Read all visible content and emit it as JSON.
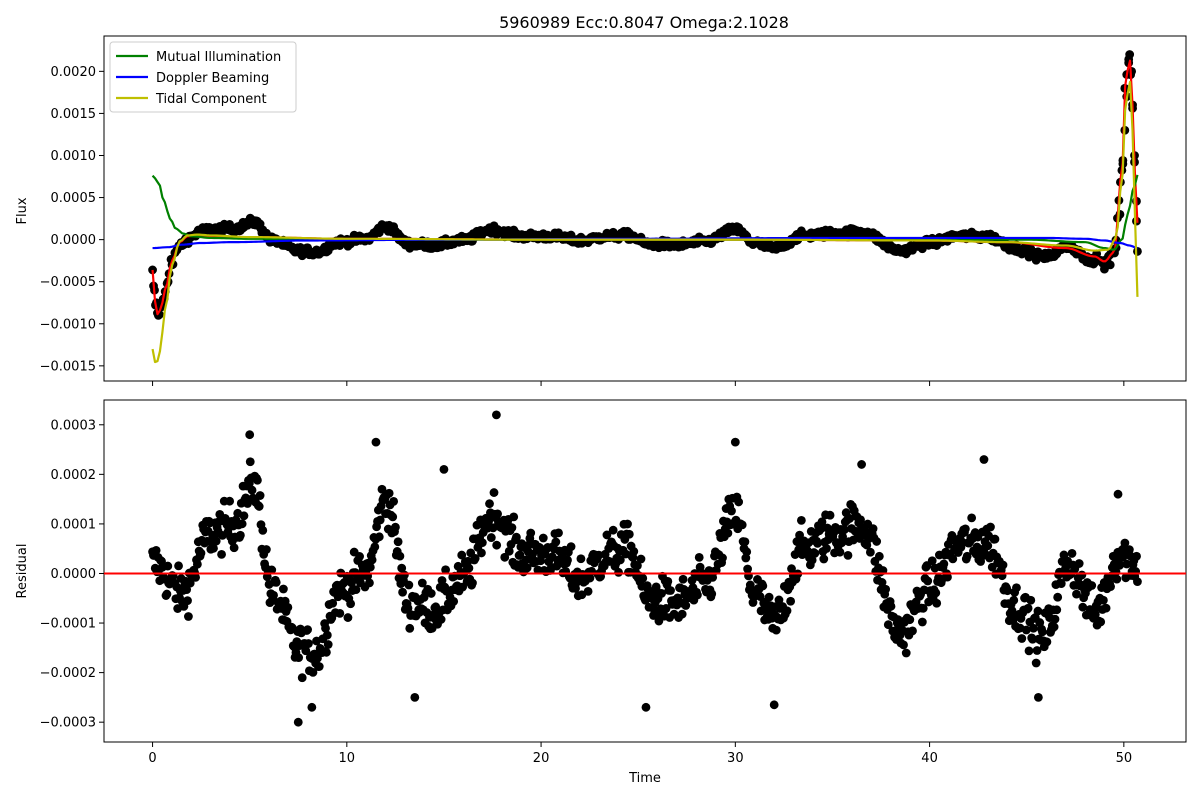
{
  "chart_data": [
    {
      "type": "scatter",
      "title": "5960989    Ecc:0.8047  Omega:2.1028",
      "xlabel": "",
      "ylabel": "Flux",
      "xlim": [
        -2.5,
        53.2
      ],
      "ylim": [
        -0.00168,
        0.00242
      ],
      "x_ticks": [
        0,
        10,
        20,
        30,
        40,
        50
      ],
      "y_ticks": [
        -0.0015,
        -0.001,
        -0.0005,
        0.0,
        0.0005,
        0.001,
        0.0015,
        0.002
      ],
      "y_tick_labels": [
        "−0.0015",
        "−0.0010",
        "−0.0005",
        "0.0000",
        "0.0005",
        "0.0010",
        "0.0015",
        "0.0020"
      ],
      "x_tick_labels_visible": false,
      "legend_position": "upper-left",
      "series": [
        {
          "name": "Mutual Illumination",
          "kind": "line",
          "color": "#008000",
          "x": [
            0.0,
            0.3,
            0.6,
            0.9,
            1.2,
            1.6,
            2.0,
            3.0,
            5.0,
            10,
            20,
            30,
            40,
            45,
            48,
            49.0,
            49.5,
            49.9,
            50.2,
            50.5,
            50.7
          ],
          "y": [
            0.00076,
            0.00068,
            0.00045,
            0.00025,
            0.00013,
            7e-05,
            4e-05,
            2e-05,
            1e-05,
            0.0,
            0.0,
            0.0,
            0.0,
            0.0,
            -3e-05,
            -0.0001,
            -0.00012,
            0.0,
            0.0003,
            0.0006,
            0.00077
          ]
        },
        {
          "name": "Doppler Beaming",
          "kind": "line",
          "color": "#0000ff",
          "x": [
            0.0,
            0.8,
            1.5,
            2.5,
            4,
            8,
            15,
            25,
            35,
            42,
            46,
            48,
            49,
            49.8,
            50.3,
            50.7
          ],
          "y": [
            -0.0001,
            -9e-05,
            -6e-05,
            -4e-05,
            -3e-05,
            -1e-05,
            0.0,
            1e-05,
            2e-05,
            2e-05,
            2e-05,
            1e-05,
            -1e-05,
            -4e-05,
            -7e-05,
            -0.0001
          ]
        },
        {
          "name": "Tidal Component",
          "kind": "line",
          "color": "#bfbf00",
          "x": [
            0.0,
            0.1,
            0.2,
            0.35,
            0.5,
            0.7,
            1.0,
            1.4,
            1.8,
            2.3,
            3.0,
            5,
            10,
            20,
            30,
            40,
            44,
            47,
            48.5,
            49.2,
            49.6,
            49.9,
            50.1,
            50.3,
            50.45,
            50.6,
            50.7
          ],
          "y": [
            -0.0013,
            -0.00145,
            -0.00148,
            -0.00135,
            -0.0011,
            -0.00075,
            -0.0003,
            -2e-05,
            5e-05,
            6e-05,
            5e-05,
            3e-05,
            1e-05,
            0.0,
            0.0,
            -1e-05,
            -3e-05,
            -7e-05,
            -0.00013,
            -0.00012,
            2e-05,
            0.0007,
            0.0016,
            0.0019,
            0.0013,
            0.0002,
            -0.00068
          ]
        },
        {
          "name": "",
          "kind": "line",
          "color": "#ff0000",
          "x": [
            0.0,
            0.1,
            0.2,
            0.35,
            0.5,
            0.7,
            1.0,
            1.4,
            1.8,
            2.3,
            3.0,
            5,
            10,
            20,
            30,
            40,
            44,
            47,
            48.5,
            49.0,
            49.5,
            49.9,
            50.1,
            50.3,
            50.45,
            50.6,
            50.7
          ],
          "y": [
            -0.00036,
            -0.0007,
            -0.0009,
            -0.00085,
            -0.00075,
            -0.00055,
            -0.00025,
            -3e-05,
            4e-05,
            5e-05,
            4e-05,
            3e-05,
            1e-05,
            0.0,
            0.0,
            -1e-05,
            -3e-05,
            -0.0001,
            -0.0002,
            -0.00026,
            -0.00015,
            0.0008,
            0.0019,
            0.00215,
            0.0016,
            0.0007,
            0.0002
          ]
        }
      ],
      "flux_features": [
        {
          "x": 0.0,
          "y": -0.00036
        },
        {
          "x": 0.1,
          "y": -0.0006
        },
        {
          "x": 0.2,
          "y": -0.00075
        },
        {
          "x": 0.3,
          "y": -0.0009
        },
        {
          "x": 0.45,
          "y": -0.0008
        },
        {
          "x": 0.6,
          "y": -0.0007
        },
        {
          "x": 0.8,
          "y": -0.0005
        },
        {
          "x": 1.0,
          "y": -0.0003
        },
        {
          "x": 1.3,
          "y": -0.0001
        },
        {
          "x": 49.0,
          "y": -0.00035
        },
        {
          "x": 49.3,
          "y": -0.0003
        },
        {
          "x": 49.6,
          "y": -0.0001
        },
        {
          "x": 49.8,
          "y": 0.0003
        },
        {
          "x": 49.95,
          "y": 0.0009
        },
        {
          "x": 50.05,
          "y": 0.0013
        },
        {
          "x": 50.15,
          "y": 0.0017
        },
        {
          "x": 50.25,
          "y": 0.0021
        },
        {
          "x": 50.3,
          "y": 0.0022
        },
        {
          "x": 50.4,
          "y": 0.002
        },
        {
          "x": 50.45,
          "y": 0.0016
        },
        {
          "x": 50.55,
          "y": 0.001
        },
        {
          "x": 50.65,
          "y": 0.00022
        },
        {
          "x": 50.7,
          "y": -0.00014
        }
      ]
    },
    {
      "type": "scatter",
      "title": "",
      "xlabel": "Time",
      "ylabel": "Residual",
      "xlim": [
        -2.5,
        53.2
      ],
      "ylim": [
        -0.00034,
        0.00035
      ],
      "x_ticks": [
        0,
        10,
        20,
        30,
        40,
        50
      ],
      "x_tick_labels": [
        "0",
        "10",
        "20",
        "30",
        "40",
        "50"
      ],
      "y_ticks": [
        -0.0003,
        -0.0002,
        -0.0001,
        0.0,
        0.0001,
        0.0002,
        0.0003
      ],
      "y_tick_labels": [
        "−0.0003",
        "−0.0002",
        "−0.0001",
        "0.0000",
        "0.0001",
        "0.0002",
        "0.0003"
      ],
      "reference_line": {
        "y": 0.0,
        "color": "#ff0000"
      },
      "residual_trend": {
        "x": [
          0,
          1.5,
          3,
          4.2,
          5.2,
          6.2,
          7.5,
          8.5,
          9.5,
          11,
          12,
          13.2,
          14.5,
          16,
          17.5,
          19,
          20.5,
          22,
          23.5,
          24.5,
          25.5,
          27,
          28.5,
          30,
          31,
          32,
          33.5,
          35,
          36.5,
          38.5,
          40,
          41.5,
          43,
          44.5,
          45.8,
          47.2,
          48.5,
          49.8,
          50.7
        ],
        "y": [
          2e-05,
          -4e-05,
          8e-05,
          0.0001,
          0.00018,
          -4e-05,
          -0.00015,
          -0.00016,
          -4e-05,
          0.0,
          0.00015,
          -6e-05,
          -7e-05,
          -1e-05,
          0.00012,
          4e-05,
          4e-05,
          -1e-05,
          4e-05,
          5e-05,
          -5e-05,
          -6e-05,
          -2e-05,
          0.00012,
          -4e-05,
          -0.0001,
          5e-05,
          8e-05,
          0.0001,
          -0.00012,
          -3e-05,
          6e-05,
          6e-05,
          -7e-05,
          -0.00013,
          2e-05,
          -8e-05,
          4e-05,
          2e-05
        ]
      },
      "residual_extremes": [
        {
          "x": 5.0,
          "y": 0.00028
        },
        {
          "x": 7.5,
          "y": -0.0003
        },
        {
          "x": 8.2,
          "y": -0.00027
        },
        {
          "x": 11.5,
          "y": 0.000265
        },
        {
          "x": 15.0,
          "y": 0.00021
        },
        {
          "x": 17.7,
          "y": 0.00032
        },
        {
          "x": 25.4,
          "y": -0.00027
        },
        {
          "x": 30.0,
          "y": 0.000265
        },
        {
          "x": 32.0,
          "y": -0.000265
        },
        {
          "x": 36.5,
          "y": 0.00022
        },
        {
          "x": 42.8,
          "y": 0.00023
        },
        {
          "x": 45.6,
          "y": -0.00025
        },
        {
          "x": 13.5,
          "y": -0.00025
        },
        {
          "x": 49.7,
          "y": 0.00016
        }
      ]
    }
  ]
}
